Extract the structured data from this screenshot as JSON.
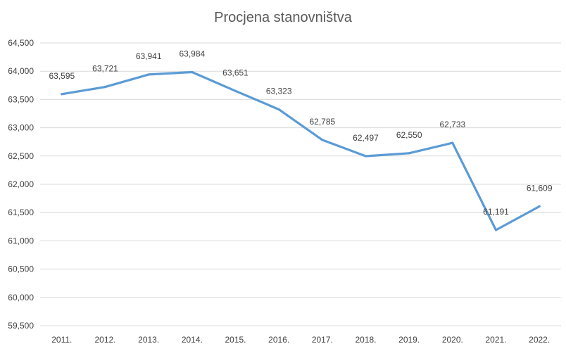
{
  "chart_data": {
    "type": "line",
    "title": "Procjena stanovništva",
    "xlabel": "",
    "ylabel": "",
    "categories": [
      "2011.",
      "2012.",
      "2013.",
      "2014.",
      "2015.",
      "2016.",
      "2017.",
      "2018.",
      "2019.",
      "2020.",
      "2021.",
      "2022."
    ],
    "series": [
      {
        "values": [
          63595,
          63721,
          63941,
          63984,
          63651,
          63323,
          62785,
          62497,
          62550,
          62733,
          61191,
          61609
        ],
        "data_labels": [
          "63,595",
          "63,721",
          "63,941",
          "63,984",
          "63,651",
          "63,323",
          "62,785",
          "62,497",
          "62,550",
          "62,733",
          "61,191",
          "61,609"
        ],
        "color": "#5b9bd5"
      }
    ],
    "ylim": [
      59500,
      64500
    ],
    "yticks": [
      59500,
      60000,
      60500,
      61000,
      61500,
      62000,
      62500,
      63000,
      63500,
      64000,
      64500
    ],
    "ytick_labels": [
      "59,500",
      "60,000",
      "60,500",
      "61,000",
      "61,500",
      "62,000",
      "62,500",
      "63,000",
      "63,500",
      "64,000",
      "64,500"
    ],
    "grid": true,
    "legend": "none"
  }
}
